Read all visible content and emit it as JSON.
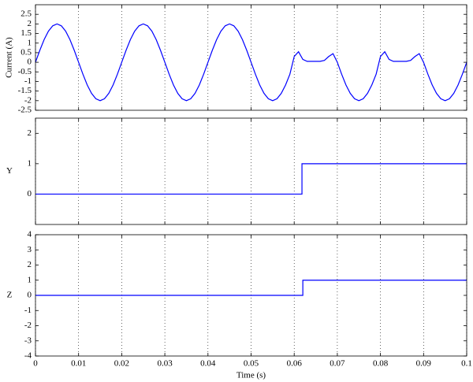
{
  "chart_data": [
    {
      "type": "line",
      "ylabel": "Current (A)",
      "color": "#0000ff",
      "xlim": [
        0,
        0.1
      ],
      "ylim": [
        -2.5,
        3
      ],
      "yticks": [
        -2.5,
        -2,
        -1.5,
        -1,
        -0.5,
        0,
        0.5,
        1,
        1.5,
        2,
        2.5
      ],
      "grid": "x",
      "x": [
        0,
        0.001,
        0.002,
        0.003,
        0.004,
        0.005,
        0.006,
        0.007,
        0.008,
        0.009,
        0.01,
        0.011,
        0.012,
        0.013,
        0.014,
        0.015,
        0.016,
        0.017,
        0.018,
        0.019,
        0.02,
        0.021,
        0.022,
        0.023,
        0.024,
        0.025,
        0.026,
        0.027,
        0.028,
        0.029,
        0.03,
        0.031,
        0.032,
        0.033,
        0.034,
        0.035,
        0.036,
        0.037,
        0.038,
        0.039,
        0.04,
        0.041,
        0.042,
        0.043,
        0.044,
        0.045,
        0.046,
        0.047,
        0.048,
        0.049,
        0.05,
        0.051,
        0.052,
        0.053,
        0.054,
        0.055,
        0.056,
        0.057,
        0.058,
        0.059,
        0.06,
        0.061,
        0.062,
        0.063,
        0.064,
        0.065,
        0.066,
        0.067,
        0.068,
        0.069,
        0.07,
        0.071,
        0.072,
        0.073,
        0.074,
        0.075,
        0.076,
        0.077,
        0.078,
        0.079,
        0.08,
        0.081,
        0.082,
        0.083,
        0.084,
        0.085,
        0.086,
        0.087,
        0.088,
        0.089,
        0.09,
        0.091,
        0.092,
        0.093,
        0.094,
        0.095,
        0.096,
        0.097,
        0.098,
        0.099,
        0.1
      ],
      "values": [
        0,
        0.62,
        1.18,
        1.62,
        1.9,
        2,
        1.9,
        1.62,
        1.18,
        0.62,
        0,
        -0.62,
        -1.18,
        -1.62,
        -1.9,
        -2,
        -1.9,
        -1.62,
        -1.18,
        -0.62,
        0,
        0.62,
        1.18,
        1.62,
        1.9,
        2,
        1.9,
        1.62,
        1.18,
        0.62,
        0,
        -0.62,
        -1.18,
        -1.62,
        -1.9,
        -2,
        -1.9,
        -1.62,
        -1.18,
        -0.62,
        0,
        0.62,
        1.18,
        1.62,
        1.9,
        2,
        1.9,
        1.62,
        1.18,
        0.62,
        0,
        -0.62,
        -1.18,
        -1.62,
        -1.9,
        -2,
        -1.9,
        -1.62,
        -1.18,
        -0.62,
        0.3,
        0.55,
        0.15,
        0.05,
        0.05,
        0.05,
        0.05,
        0.1,
        0.3,
        0.45,
        0,
        -0.62,
        -1.18,
        -1.62,
        -1.9,
        -2,
        -1.9,
        -1.62,
        -1.18,
        -0.62,
        0.3,
        0.55,
        0.15,
        0.05,
        0.05,
        0.05,
        0.05,
        0.1,
        0.3,
        0.45,
        0,
        -0.62,
        -1.18,
        -1.62,
        -1.9,
        -2,
        -1.9,
        -1.62,
        -1.18,
        -0.62,
        0
      ]
    },
    {
      "type": "line",
      "ylabel": "Y",
      "color": "#0000ff",
      "xlim": [
        0,
        0.1
      ],
      "ylim": [
        -1,
        2.5
      ],
      "yticks": [
        0,
        1,
        2
      ],
      "grid": "x",
      "x": [
        0,
        0.0618,
        0.0618,
        0.1
      ],
      "values": [
        0,
        0,
        1,
        1
      ]
    },
    {
      "type": "line",
      "ylabel": "Z",
      "xlabel": "Time (s)",
      "color": "#0000ff",
      "xlim": [
        0,
        0.1
      ],
      "ylim": [
        -4,
        4
      ],
      "xticks": [
        0,
        0.01,
        0.02,
        0.03,
        0.04,
        0.05,
        0.06,
        0.07,
        0.08,
        0.09,
        0.1
      ],
      "yticks": [
        -4,
        -3,
        -2,
        -1,
        0,
        1,
        2,
        3,
        4
      ],
      "grid": "x",
      "x": [
        0,
        0.062,
        0.062,
        0.1
      ],
      "values": [
        0,
        0,
        1,
        1
      ]
    }
  ]
}
